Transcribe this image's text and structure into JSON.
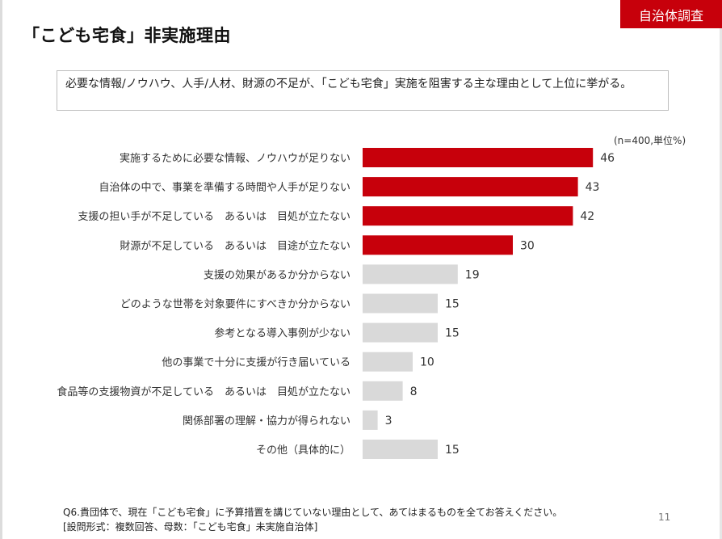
{
  "header": {
    "tag": "自治体調査",
    "title": "「こども宅食」非実施理由"
  },
  "question_text": "必要な情報/ノウハウ、人手/人材、財源の不足が、「こども宅食」実施を阻害する主な理由として上位に挙がる。",
  "unit_note": "(n=400,単位%)",
  "colors": {
    "accent": "#c7000b",
    "muted": "#d9d9d9"
  },
  "chart_data": {
    "type": "bar",
    "orientation": "horizontal",
    "categories": [
      "実施するために必要な情報、ノウハウが足りない",
      "自治体の中で、事業を準備する時間や人手が足りない",
      "支援の担い手が不足している　あるいは　目処が立たない",
      "財源が不足している　あるいは　目途が立たない",
      "支援の効果があるか分からない",
      "どのような世帯を対象要件にすべきか分からない",
      "参考となる導入事例が少ない",
      "他の事業で十分に支援が行き届いている",
      "食品等の支援物資が不足している　あるいは　目処が立たない",
      "関係部署の理解・協力が得られない",
      "その他（具体的に）"
    ],
    "values": [
      46,
      43,
      42,
      30,
      19,
      15,
      15,
      10,
      8,
      3,
      15
    ],
    "highlighted": [
      true,
      true,
      true,
      true,
      false,
      false,
      false,
      false,
      false,
      false,
      false
    ],
    "xlim": [
      0,
      50
    ],
    "grid": false,
    "legend": "none"
  },
  "footer": {
    "question": "Q6.貴団体で、現在「こども宅食」に予算措置を講じていない理由として、あてはまるものを全てお答えください。",
    "format": "[設問形式：複数回答、母数：「こども宅食」未実施自治体]"
  },
  "page_number": "11"
}
